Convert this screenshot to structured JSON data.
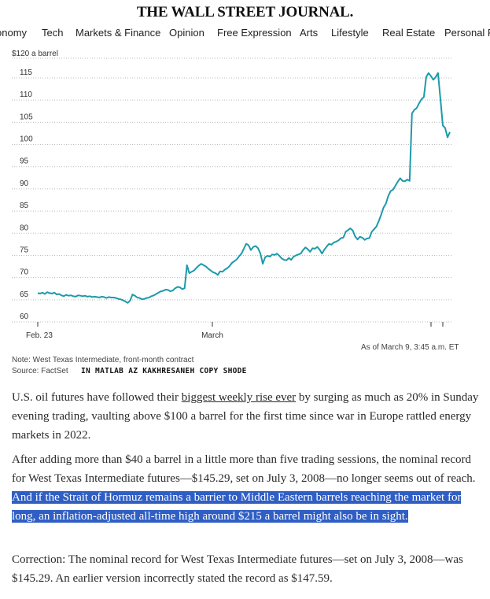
{
  "masthead": "THE WALL STREET JOURNAL.",
  "nav": [
    "onomy",
    "Tech",
    "Markets & Finance",
    "Opinion",
    "Free Expression",
    "Arts",
    "Lifestyle",
    "Real Estate",
    "Personal F"
  ],
  "chart_data": {
    "type": "line",
    "title": "",
    "ylabel_top": "$120 a barrel",
    "y_ticks": [
      115,
      110,
      105,
      100,
      95,
      90,
      85,
      80,
      75,
      70,
      65,
      60
    ],
    "ylim": [
      60,
      120
    ],
    "x_ticks": [
      "Feb. 23",
      "March"
    ],
    "series": [
      {
        "name": "West Texas Intermediate, front-month contract",
        "color": "#1c9aaa",
        "values": [
          66.5,
          66.4,
          66.6,
          66.3,
          66.7,
          66.5,
          66.4,
          66.6,
          66.2,
          66.3,
          66.0,
          65.8,
          66.1,
          65.9,
          66.0,
          65.8,
          65.7,
          66.0,
          65.9,
          65.8,
          65.9,
          65.7,
          65.8,
          65.6,
          65.7,
          65.6,
          65.5,
          65.7,
          65.6,
          65.4,
          65.6,
          65.5,
          65.5,
          65.4,
          65.2,
          65.1,
          64.9,
          64.6,
          64.3,
          64.8,
          66.2,
          65.9,
          65.5,
          65.4,
          65.1,
          65.2,
          65.4,
          65.5,
          65.8,
          66.0,
          66.3,
          66.6,
          66.9,
          67.0,
          67.3,
          67.2,
          66.9,
          67.1,
          67.6,
          67.9,
          67.8,
          67.4,
          67.6,
          72.8,
          71.0,
          71.3,
          71.6,
          72.2,
          72.7,
          73.1,
          72.8,
          72.5,
          72.0,
          71.6,
          71.2,
          71.0,
          70.6,
          71.4,
          71.3,
          71.8,
          72.1,
          72.6,
          73.3,
          73.7,
          74.1,
          74.8,
          75.4,
          76.5,
          77.6,
          77.3,
          76.2,
          76.9,
          77.1,
          76.6,
          75.4,
          73.1,
          74.6,
          74.9,
          74.7,
          75.2,
          75.1,
          75.4,
          74.9,
          74.3,
          74.0,
          73.9,
          74.4,
          74.0,
          74.7,
          75.0,
          75.2,
          75.4,
          76.2,
          76.8,
          76.4,
          75.8,
          76.6,
          76.5,
          76.9,
          76.3,
          75.4,
          76.3,
          77.0,
          77.6,
          77.4,
          77.9,
          78.1,
          78.4,
          78.9,
          79.0,
          80.3,
          80.7,
          81.1,
          80.6,
          79.3,
          78.6,
          79.2,
          79.0,
          78.5,
          78.8,
          78.9,
          80.3,
          80.9,
          81.5,
          82.8,
          84.2,
          85.8,
          86.7,
          88.4,
          89.5,
          89.8,
          90.7,
          91.6,
          92.4,
          91.8,
          91.7,
          92.1,
          91.8,
          107.0,
          107.8,
          108.2,
          109.3,
          110.2,
          110.7,
          115.2,
          116.1,
          115.4,
          114.6,
          115.2,
          116.1,
          110.2,
          104.3,
          103.7,
          101.6,
          102.8
        ]
      }
    ],
    "as_of": "As of March 9, 3:45 a.m. ET",
    "note": "Note: West Texas Intermediate, front-month contract",
    "source": "Source: FactSet"
  },
  "stamp_text": "IN MATLAB AZ KAKHRESANEH COPY SHODE",
  "article": {
    "p1_before": "U.S. oil futures have followed their ",
    "p1_link": "biggest weekly rise ever",
    "p1_after": " by surging as much as 20% in Sunday evening trading, vaulting above $100 a barrel for the first time since war in Europe rattled energy markets in 2022.",
    "p2_plain": "After adding more than $40 a barrel in a little more than five trading sessions, the nominal record for West Texas Intermediate futures—$145.29, set on July 3, 2008—no longer seems out of reach.",
    "p2_highlight": " And if the Strait of Hormuz remains a barrier to Middle Eastern barrels reaching the market for long, an inflation-adjusted all-time high around $215 a barrel might also be in sight.",
    "p3": "Correction: The nominal record for West Texas Intermediate futures—set on July 3, 2008—was $145.29. An earlier version incorrectly stated the record as $147.59."
  }
}
